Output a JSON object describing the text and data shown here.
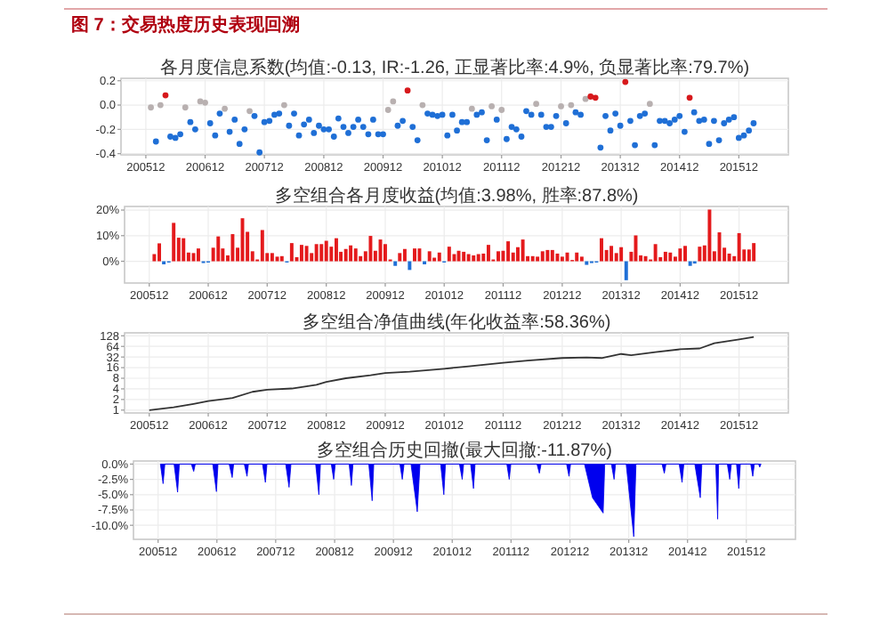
{
  "chart_data": [
    {
      "type": "other",
      "title": "图 7：交易热度历史表现回溯"
    },
    {
      "type": "scatter",
      "title": "各月度信息系数(均值:-0.13, IR:-1.26, 正显著比率:4.9%, 负显著比率:79.7%)",
      "marker": "circle",
      "grid": true,
      "xlim": [
        "2005-07",
        "2016-10"
      ],
      "ylim": [
        -0.41,
        0.22
      ],
      "yticks": [
        {
          "value": -0.4,
          "label": "-0.4"
        },
        {
          "value": -0.2,
          "label": "-0.2"
        },
        {
          "value": 0,
          "label": "0.0"
        },
        {
          "value": 0.2,
          "label": "0.2"
        }
      ],
      "xticks": [
        {
          "value": "2005-12",
          "label": "200512"
        },
        {
          "value": "2006-12",
          "label": "200612"
        },
        {
          "value": "2007-12",
          "label": "200712"
        },
        {
          "value": "2008-12",
          "label": "200812"
        },
        {
          "value": "2009-12",
          "label": "200912"
        },
        {
          "value": "2010-12",
          "label": "201012"
        },
        {
          "value": "2011-12",
          "label": "201112"
        },
        {
          "value": "2012-12",
          "label": "201212"
        },
        {
          "value": "2013-12",
          "label": "201312"
        },
        {
          "value": "2014-12",
          "label": "201412"
        },
        {
          "value": "2015-12",
          "label": "201512"
        }
      ],
      "x": [
        "2006-01",
        "2006-02",
        "2006-03",
        "2006-04",
        "2006-05",
        "2006-06",
        "2006-07",
        "2006-08",
        "2006-09",
        "2006-10",
        "2006-11",
        "2006-12",
        "2007-01",
        "2007-02",
        "2007-03",
        "2007-04",
        "2007-05",
        "2007-06",
        "2007-07",
        "2007-08",
        "2007-09",
        "2007-10",
        "2007-11",
        "2007-12",
        "2008-01",
        "2008-02",
        "2008-03",
        "2008-04",
        "2008-05",
        "2008-06",
        "2008-07",
        "2008-08",
        "2008-09",
        "2008-10",
        "2008-11",
        "2008-12",
        "2009-01",
        "2009-02",
        "2009-03",
        "2009-04",
        "2009-05",
        "2009-06",
        "2009-07",
        "2009-08",
        "2009-09",
        "2009-10",
        "2009-11",
        "2009-12",
        "2010-01",
        "2010-02",
        "2010-03",
        "2010-04",
        "2010-05",
        "2010-06",
        "2010-07",
        "2010-08",
        "2010-09",
        "2010-10",
        "2010-11",
        "2010-12",
        "2011-01",
        "2011-02",
        "2011-03",
        "2011-04",
        "2011-05",
        "2011-06",
        "2011-07",
        "2011-08",
        "2011-09",
        "2011-10",
        "2011-11",
        "2011-12",
        "2012-01",
        "2012-02",
        "2012-03",
        "2012-04",
        "2012-05",
        "2012-06",
        "2012-07",
        "2012-08",
        "2012-09",
        "2012-10",
        "2012-11",
        "2012-12",
        "2013-01",
        "2013-02",
        "2013-03",
        "2013-04",
        "2013-05",
        "2013-06",
        "2013-07",
        "2013-08",
        "2013-09",
        "2013-10",
        "2013-11",
        "2013-12",
        "2014-01",
        "2014-02",
        "2014-03",
        "2014-04",
        "2014-05",
        "2014-06",
        "2014-07",
        "2014-08",
        "2014-09",
        "2014-10",
        "2014-11",
        "2014-12",
        "2015-01",
        "2015-02",
        "2015-03",
        "2015-04",
        "2015-05",
        "2015-06",
        "2015-07",
        "2015-08",
        "2015-09",
        "2015-10",
        "2015-11",
        "2015-12",
        "2016-01",
        "2016-02",
        "2016-03"
      ],
      "values": [
        -0.02,
        -0.3,
        0.0,
        0.08,
        -0.26,
        -0.27,
        -0.24,
        -0.02,
        -0.14,
        -0.2,
        0.03,
        0.02,
        -0.15,
        -0.25,
        -0.07,
        -0.03,
        -0.22,
        -0.12,
        -0.32,
        -0.2,
        -0.05,
        -0.09,
        -0.39,
        -0.14,
        -0.13,
        -0.08,
        -0.07,
        0.0,
        -0.17,
        -0.07,
        -0.25,
        -0.16,
        -0.12,
        -0.23,
        -0.17,
        -0.2,
        -0.2,
        -0.26,
        -0.11,
        -0.18,
        -0.23,
        -0.18,
        -0.12,
        -0.18,
        -0.24,
        -0.12,
        -0.24,
        -0.24,
        -0.04,
        0.03,
        -0.17,
        -0.13,
        0.12,
        -0.18,
        -0.29,
        0.0,
        -0.07,
        -0.08,
        -0.09,
        -0.08,
        -0.25,
        -0.08,
        -0.21,
        -0.14,
        -0.14,
        -0.03,
        -0.08,
        -0.06,
        -0.29,
        -0.01,
        -0.12,
        -0.04,
        -0.28,
        -0.18,
        -0.2,
        -0.26,
        -0.05,
        -0.08,
        0.01,
        -0.08,
        -0.18,
        -0.18,
        -0.09,
        -0.01,
        -0.15,
        0.0,
        -0.06,
        -0.08,
        0.05,
        0.07,
        0.06,
        -0.35,
        -0.09,
        -0.21,
        -0.07,
        -0.17,
        0.19,
        -0.13,
        -0.33,
        -0.09,
        -0.07,
        0.01,
        -0.33,
        -0.13,
        -0.13,
        -0.15,
        -0.12,
        -0.09,
        -0.22,
        0.06,
        -0.06,
        -0.13,
        -0.12,
        -0.32,
        -0.13,
        -0.29,
        -0.15,
        -0.12,
        -0.1,
        -0.27,
        -0.25,
        -0.21,
        -0.15
      ],
      "colors": [
        "#b8b0b0",
        "#1f6fd6",
        "#b8b0b0",
        "#d7191c",
        "#1f6fd6",
        "#1f6fd6",
        "#1f6fd6",
        "#b8b0b0",
        "#1f6fd6",
        "#1f6fd6",
        "#b8b0b0",
        "#b8b0b0",
        "#1f6fd6",
        "#1f6fd6",
        "#1f6fd6",
        "#b8b0b0",
        "#1f6fd6",
        "#1f6fd6",
        "#1f6fd6",
        "#1f6fd6",
        "#b8b0b0",
        "#1f6fd6",
        "#1f6fd6",
        "#1f6fd6",
        "#1f6fd6",
        "#1f6fd6",
        "#1f6fd6",
        "#b8b0b0",
        "#1f6fd6",
        "#1f6fd6",
        "#1f6fd6",
        "#1f6fd6",
        "#1f6fd6",
        "#1f6fd6",
        "#1f6fd6",
        "#1f6fd6",
        "#1f6fd6",
        "#1f6fd6",
        "#1f6fd6",
        "#1f6fd6",
        "#1f6fd6",
        "#1f6fd6",
        "#1f6fd6",
        "#1f6fd6",
        "#1f6fd6",
        "#1f6fd6",
        "#1f6fd6",
        "#1f6fd6",
        "#b8b0b0",
        "#b8b0b0",
        "#1f6fd6",
        "#1f6fd6",
        "#d7191c",
        "#1f6fd6",
        "#1f6fd6",
        "#b8b0b0",
        "#1f6fd6",
        "#1f6fd6",
        "#1f6fd6",
        "#1f6fd6",
        "#1f6fd6",
        "#1f6fd6",
        "#1f6fd6",
        "#1f6fd6",
        "#1f6fd6",
        "#b8b0b0",
        "#1f6fd6",
        "#1f6fd6",
        "#1f6fd6",
        "#b8b0b0",
        "#1f6fd6",
        "#b8b0b0",
        "#1f6fd6",
        "#1f6fd6",
        "#1f6fd6",
        "#1f6fd6",
        "#1f6fd6",
        "#1f6fd6",
        "#b8b0b0",
        "#1f6fd6",
        "#1f6fd6",
        "#1f6fd6",
        "#1f6fd6",
        "#b8b0b0",
        "#1f6fd6",
        "#b8b0b0",
        "#1f6fd6",
        "#1f6fd6",
        "#b8b0b0",
        "#d7191c",
        "#d7191c",
        "#1f6fd6",
        "#1f6fd6",
        "#1f6fd6",
        "#1f6fd6",
        "#1f6fd6",
        "#d7191c",
        "#1f6fd6",
        "#1f6fd6",
        "#1f6fd6",
        "#1f6fd6",
        "#b8b0b0",
        "#1f6fd6",
        "#1f6fd6",
        "#1f6fd6",
        "#1f6fd6",
        "#1f6fd6",
        "#1f6fd6",
        "#1f6fd6",
        "#d7191c",
        "#1f6fd6",
        "#1f6fd6",
        "#1f6fd6",
        "#1f6fd6",
        "#1f6fd6",
        "#1f6fd6",
        "#1f6fd6",
        "#1f6fd6",
        "#1f6fd6",
        "#1f6fd6",
        "#1f6fd6",
        "#1f6fd6",
        "#1f6fd6"
      ]
    },
    {
      "type": "bar",
      "title": "多空组合各月度收益(均值:3.98%, 胜率:87.8%)",
      "grid": true,
      "xlim": [
        "2005-07",
        "2016-10"
      ],
      "ylim": [
        -8.5,
        21.4
      ],
      "yticks": [
        {
          "value": 0,
          "label": "0%"
        },
        {
          "value": 10,
          "label": "10%"
        },
        {
          "value": 20,
          "label": "20%"
        }
      ],
      "xticks": [
        {
          "value": "2005-12",
          "label": "200512"
        },
        {
          "value": "2006-12",
          "label": "200612"
        },
        {
          "value": "2007-12",
          "label": "200712"
        },
        {
          "value": "2008-12",
          "label": "200812"
        },
        {
          "value": "2009-12",
          "label": "200912"
        },
        {
          "value": "2010-12",
          "label": "201012"
        },
        {
          "value": "2011-12",
          "label": "201112"
        },
        {
          "value": "2012-12",
          "label": "201212"
        },
        {
          "value": "2013-12",
          "label": "201312"
        },
        {
          "value": "2014-12",
          "label": "201412"
        },
        {
          "value": "2015-12",
          "label": "201512"
        }
      ],
      "x": [
        "2006-01",
        "2006-02",
        "2006-03",
        "2006-04",
        "2006-05",
        "2006-06",
        "2006-07",
        "2006-08",
        "2006-09",
        "2006-10",
        "2006-11",
        "2006-12",
        "2007-01",
        "2007-02",
        "2007-03",
        "2007-04",
        "2007-05",
        "2007-06",
        "2007-07",
        "2007-08",
        "2007-09",
        "2007-10",
        "2007-11",
        "2007-12",
        "2008-01",
        "2008-02",
        "2008-03",
        "2008-04",
        "2008-05",
        "2008-06",
        "2008-07",
        "2008-08",
        "2008-09",
        "2008-10",
        "2008-11",
        "2008-12",
        "2009-01",
        "2009-02",
        "2009-03",
        "2009-04",
        "2009-05",
        "2009-06",
        "2009-07",
        "2009-08",
        "2009-09",
        "2009-10",
        "2009-11",
        "2009-12",
        "2010-01",
        "2010-02",
        "2010-03",
        "2010-04",
        "2010-05",
        "2010-06",
        "2010-07",
        "2010-08",
        "2010-09",
        "2010-10",
        "2010-11",
        "2010-12",
        "2011-01",
        "2011-02",
        "2011-03",
        "2011-04",
        "2011-05",
        "2011-06",
        "2011-07",
        "2011-08",
        "2011-09",
        "2011-10",
        "2011-11",
        "2011-12",
        "2012-01",
        "2012-02",
        "2012-03",
        "2012-04",
        "2012-05",
        "2012-06",
        "2012-07",
        "2012-08",
        "2012-09",
        "2012-10",
        "2012-11",
        "2012-12",
        "2013-01",
        "2013-02",
        "2013-03",
        "2013-04",
        "2013-05",
        "2013-06",
        "2013-07",
        "2013-08",
        "2013-09",
        "2013-10",
        "2013-11",
        "2013-12",
        "2014-01",
        "2014-02",
        "2014-03",
        "2014-04",
        "2014-05",
        "2014-06",
        "2014-07",
        "2014-08",
        "2014-09",
        "2014-10",
        "2014-11",
        "2014-12",
        "2015-01",
        "2015-02",
        "2015-03",
        "2015-04",
        "2015-05",
        "2015-06",
        "2015-07",
        "2015-08",
        "2015-09",
        "2015-10",
        "2015-11",
        "2015-12",
        "2016-01",
        "2016-02",
        "2016-03"
      ],
      "values": [
        2.8,
        7,
        -1.2,
        -0.5,
        15,
        9.2,
        9,
        3.4,
        3.2,
        5,
        -0.7,
        -0.5,
        5.3,
        9.7,
        5,
        2.3,
        10.6,
        5.3,
        16.8,
        11.5,
        3.9,
        0.7,
        12.2,
        3.2,
        3.2,
        1.8,
        2,
        -0.5,
        7.1,
        1.6,
        6.4,
        6,
        3.2,
        6.7,
        6.7,
        8,
        5.7,
        9,
        3.7,
        4.8,
        6.2,
        5,
        2,
        3.9,
        9.9,
        4.1,
        8.5,
        6.7,
        0.7,
        -1.8,
        3.2,
        4.8,
        -3.4,
        5,
        5,
        -1.2,
        3.9,
        1.4,
        3.4,
        -0.5,
        5.7,
        2.8,
        4.1,
        3.7,
        2.8,
        2.3,
        2.8,
        3,
        6.4,
        0.7,
        3.9,
        4.1,
        7.8,
        3.4,
        5.5,
        8.5,
        2,
        2,
        1.8,
        3.9,
        4.4,
        4.4,
        3,
        1.8,
        3.4,
        0.5,
        3.4,
        1.8,
        -1.4,
        -0.7,
        -0.5,
        9,
        4.4,
        6,
        3.2,
        5.5,
        -7.4,
        3.7,
        10.1,
        2.3,
        2,
        0.7,
        6.7,
        1.6,
        3.7,
        3.4,
        1.8,
        5,
        6,
        -1.8,
        -0.9,
        5.7,
        6.2,
        20.2,
        3.9,
        11.3,
        5.3,
        3,
        2,
        11,
        4.6,
        4.6,
        7.1
      ],
      "colors": [
        "#e41a1c",
        "#e41a1c",
        "#1f6fd6",
        "#1f6fd6",
        "#e41a1c",
        "#e41a1c",
        "#e41a1c",
        "#e41a1c",
        "#e41a1c",
        "#e41a1c",
        "#1f6fd6",
        "#1f6fd6",
        "#e41a1c",
        "#e41a1c",
        "#e41a1c",
        "#e41a1c",
        "#e41a1c",
        "#e41a1c",
        "#e41a1c",
        "#e41a1c",
        "#e41a1c",
        "#e41a1c",
        "#e41a1c",
        "#e41a1c",
        "#e41a1c",
        "#e41a1c",
        "#e41a1c",
        "#1f6fd6",
        "#e41a1c",
        "#e41a1c",
        "#e41a1c",
        "#e41a1c",
        "#e41a1c",
        "#e41a1c",
        "#e41a1c",
        "#e41a1c",
        "#e41a1c",
        "#e41a1c",
        "#e41a1c",
        "#e41a1c",
        "#e41a1c",
        "#e41a1c",
        "#e41a1c",
        "#e41a1c",
        "#e41a1c",
        "#e41a1c",
        "#e41a1c",
        "#e41a1c",
        "#e41a1c",
        "#1f6fd6",
        "#e41a1c",
        "#e41a1c",
        "#1f6fd6",
        "#e41a1c",
        "#e41a1c",
        "#1f6fd6",
        "#e41a1c",
        "#e41a1c",
        "#e41a1c",
        "#1f6fd6",
        "#e41a1c",
        "#e41a1c",
        "#e41a1c",
        "#e41a1c",
        "#e41a1c",
        "#e41a1c",
        "#e41a1c",
        "#e41a1c",
        "#e41a1c",
        "#e41a1c",
        "#e41a1c",
        "#e41a1c",
        "#e41a1c",
        "#e41a1c",
        "#e41a1c",
        "#e41a1c",
        "#e41a1c",
        "#e41a1c",
        "#e41a1c",
        "#e41a1c",
        "#e41a1c",
        "#e41a1c",
        "#e41a1c",
        "#e41a1c",
        "#e41a1c",
        "#e41a1c",
        "#e41a1c",
        "#e41a1c",
        "#1f6fd6",
        "#1f6fd6",
        "#1f6fd6",
        "#e41a1c",
        "#e41a1c",
        "#e41a1c",
        "#e41a1c",
        "#e41a1c",
        "#1f6fd6",
        "#e41a1c",
        "#e41a1c",
        "#e41a1c",
        "#e41a1c",
        "#e41a1c",
        "#e41a1c",
        "#e41a1c",
        "#e41a1c",
        "#e41a1c",
        "#e41a1c",
        "#e41a1c",
        "#e41a1c",
        "#1f6fd6",
        "#1f6fd6",
        "#e41a1c",
        "#e41a1c",
        "#e41a1c",
        "#e41a1c",
        "#e41a1c",
        "#e41a1c",
        "#e41a1c",
        "#e41a1c",
        "#e41a1c",
        "#e41a1c",
        "#e41a1c",
        "#e41a1c"
      ]
    },
    {
      "type": "line",
      "title": "多空组合净值曲线(年化收益率:58.36%)",
      "grid": true,
      "log": "y",
      "color": "#333333",
      "xlim": [
        "2005-07",
        "2016-10"
      ],
      "ylim": [
        0.83,
        155
      ],
      "yticks": [
        1,
        2,
        4,
        8,
        16,
        32,
        64,
        128
      ],
      "xticks": [
        {
          "value": "2005-12",
          "label": "200512"
        },
        {
          "value": "2006-12",
          "label": "200612"
        },
        {
          "value": "2007-12",
          "label": "200712"
        },
        {
          "value": "2008-12",
          "label": "200812"
        },
        {
          "value": "2009-12",
          "label": "200912"
        },
        {
          "value": "2010-12",
          "label": "201012"
        },
        {
          "value": "2011-12",
          "label": "201112"
        },
        {
          "value": "2012-12",
          "label": "201212"
        },
        {
          "value": "2013-12",
          "label": "201312"
        },
        {
          "value": "2014-12",
          "label": "201412"
        },
        {
          "value": "2015-12",
          "label": "201512"
        }
      ],
      "x": [
        "2005-12",
        "2006-05",
        "2006-09",
        "2006-12",
        "2007-05",
        "2007-09",
        "2007-12",
        "2008-05",
        "2008-10",
        "2008-12",
        "2009-04",
        "2009-09",
        "2009-12",
        "2010-05",
        "2010-12",
        "2011-05",
        "2011-12",
        "2012-05",
        "2012-12",
        "2013-05",
        "2013-08",
        "2013-12",
        "2014-02",
        "2014-07",
        "2014-12",
        "2015-04",
        "2015-07",
        "2015-12",
        "2016-03"
      ],
      "values": [
        1,
        1.2,
        1.5,
        1.8,
        2.2,
        3.3,
        3.8,
        4.1,
        5.2,
        6.3,
        8,
        9.7,
        11.3,
        12.3,
        14.9,
        17.4,
        21.9,
        25.4,
        30,
        31,
        30,
        39,
        36,
        44,
        53,
        56,
        79,
        101,
        118
      ]
    },
    {
      "type": "area",
      "title": "多空组合历史回撤(最大回撤:-11.87%)",
      "grid": true,
      "color": "#0000ee",
      "xlim": [
        "2005-07",
        "2016-10"
      ],
      "ylim": [
        -12.3,
        0.5
      ],
      "yticks": [
        {
          "value": 0,
          "label": "0.0%"
        },
        {
          "value": -2.5,
          "label": "-2.5%"
        },
        {
          "value": -5,
          "label": "-5.0%"
        },
        {
          "value": -7.5,
          "label": "-7.5%"
        },
        {
          "value": -10,
          "label": "-10.0%"
        }
      ],
      "xticks": [
        {
          "value": "2005-12",
          "label": "200512"
        },
        {
          "value": "2006-12",
          "label": "200612"
        },
        {
          "value": "2007-12",
          "label": "200712"
        },
        {
          "value": "2008-12",
          "label": "200812"
        },
        {
          "value": "2009-12",
          "label": "200912"
        },
        {
          "value": "2010-12",
          "label": "201012"
        },
        {
          "value": "2011-12",
          "label": "201112"
        },
        {
          "value": "2012-12",
          "label": "201212"
        },
        {
          "value": "2013-12",
          "label": "201312"
        },
        {
          "value": "2014-12",
          "label": "201412"
        },
        {
          "value": "2015-12",
          "label": "201512"
        }
      ],
      "x": [
        "2005-12-15",
        "2006-01-01",
        "2006-01-12",
        "2006-03-10",
        "2006-04-01",
        "2006-04-12",
        "2006-06-25",
        "2006-07-10",
        "2006-07-20",
        "2006-11-05",
        "2006-11-28",
        "2006-12-08",
        "2007-02-15",
        "2007-03-06",
        "2007-03-15",
        "2007-05-20",
        "2007-06-06",
        "2007-06-15",
        "2007-09-10",
        "2007-09-28",
        "2007-10-08",
        "2008-02-01",
        "2008-02-22",
        "2008-03-05",
        "2008-08-05",
        "2008-08-25",
        "2008-09-04",
        "2008-11-10",
        "2008-11-25",
        "2008-12-05",
        "2009-03-01",
        "2009-03-15",
        "2009-03-25",
        "2009-07-01",
        "2009-07-22",
        "2009-08-01",
        "2010-01-10",
        "2010-01-25",
        "2010-02-05",
        "2010-03-20",
        "2010-04-28",
        "2010-05-15",
        "2010-09-20",
        "2010-10-10",
        "2010-10-20",
        "2011-01-15",
        "2011-02-01",
        "2011-02-10",
        "2011-03-25",
        "2011-04-12",
        "2011-04-22",
        "2011-11-05",
        "2011-11-20",
        "2011-11-30",
        "2012-05-10",
        "2012-05-25",
        "2012-06-05",
        "2012-11-10",
        "2012-11-25",
        "2012-12-05",
        "2013-03-01",
        "2013-04-20",
        "2013-06-25",
        "2013-07-05",
        "2013-08-15",
        "2013-09-01",
        "2013-09-10",
        "2013-11-15",
        "2014-01-01",
        "2014-01-15",
        "2014-06-25",
        "2014-07-10",
        "2014-07-20",
        "2014-10-10",
        "2014-10-28",
        "2014-11-08",
        "2015-01-15",
        "2015-02-18",
        "2015-02-28",
        "2015-05-25",
        "2015-06-06",
        "2015-06-12",
        "2015-08-05",
        "2015-08-20",
        "2015-08-30",
        "2015-10-01",
        "2015-10-15",
        "2015-10-25",
        "2015-12-28",
        "2016-01-10",
        "2016-01-20",
        "2016-02-15",
        "2016-02-22",
        "2016-03-01"
      ],
      "values": [
        0,
        -3.2,
        0,
        0,
        -4.6,
        0,
        0,
        -1.2,
        0,
        0,
        -4.5,
        0,
        0,
        -2.2,
        0,
        0,
        -2,
        0,
        0,
        -3,
        0,
        0,
        -3.8,
        0,
        0,
        -5,
        0,
        0,
        -2.5,
        0,
        0,
        -3.5,
        0,
        0,
        -6,
        0,
        0,
        -2.5,
        0,
        0,
        -7.8,
        0,
        0,
        -5,
        0,
        0,
        -2.5,
        0,
        0,
        -4,
        0,
        0,
        -2.5,
        0,
        0,
        -1.5,
        0,
        0,
        -2,
        0,
        0,
        -5.5,
        -8,
        0,
        0,
        -2.5,
        0,
        0,
        -11.87,
        0,
        0,
        -1.5,
        0,
        0,
        -3,
        0,
        0,
        -5.5,
        0,
        0,
        -9,
        0,
        0,
        -2.5,
        0,
        0,
        -4,
        0,
        0,
        -2,
        0,
        0,
        -0.5,
        0
      ]
    }
  ]
}
